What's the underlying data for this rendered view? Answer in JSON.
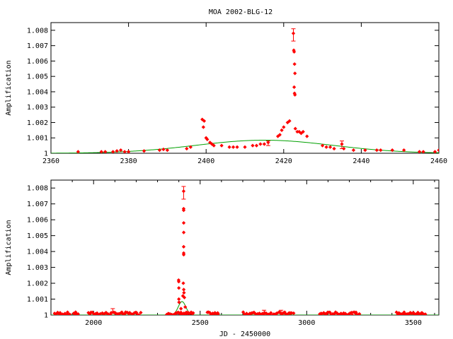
{
  "title": "MOA 2002-BLG-12",
  "colors": {
    "data": "#ff0000",
    "model": "#00a000",
    "axis": "#000000"
  },
  "chart_data": [
    {
      "type": "scatter",
      "title": "MOA 2002-BLG-12",
      "xlabel": "",
      "ylabel": "Amplification",
      "xlim": [
        2360,
        2460
      ],
      "ylim": [
        1.0,
        1.0085
      ],
      "xticks": [
        "2360",
        "2380",
        "2400",
        "2420",
        "2440",
        "2460"
      ],
      "xtick_values": [
        2360,
        2380,
        2400,
        2420,
        2440,
        2460
      ],
      "yticks": [
        "1",
        "1.001",
        "1.002",
        "1.003",
        "1.004",
        "1.005",
        "1.006",
        "1.007",
        "1.008"
      ],
      "ytick_values": [
        1.0,
        1.001,
        1.002,
        1.003,
        1.004,
        1.005,
        1.006,
        1.007,
        1.008
      ],
      "series": [
        {
          "kind": "points",
          "points": [
            [
              2367,
              1.0001
            ],
            [
              2373,
              1.0001
            ],
            [
              2374,
              1.0001
            ],
            [
              2376,
              1.0001
            ],
            [
              2377,
              1.00015
            ],
            [
              2378,
              1.0002
            ],
            [
              2379,
              1.0001
            ],
            [
              2380,
              1.0001
            ],
            [
              2384,
              1.00015
            ],
            [
              2388,
              1.0002
            ],
            [
              2389,
              1.00025
            ],
            [
              2390,
              1.0002
            ],
            [
              2395,
              1.0003
            ],
            [
              2396,
              1.0004
            ],
            [
              2399,
              1.0022
            ],
            [
              2399.5,
              1.0021
            ],
            [
              2399.3,
              1.0017
            ],
            [
              2400,
              1.001
            ],
            [
              2400.3,
              1.0009
            ],
            [
              2401,
              1.0007
            ],
            [
              2401.5,
              1.0006
            ],
            [
              2402,
              1.0005
            ],
            [
              2404,
              1.0005
            ],
            [
              2406,
              1.0004
            ],
            [
              2407,
              1.0004
            ],
            [
              2408,
              1.0004
            ],
            [
              2410,
              1.0004
            ],
            [
              2412,
              1.0005
            ],
            [
              2413,
              1.0005
            ],
            [
              2414,
              1.0006
            ],
            [
              2415,
              1.0006
            ],
            [
              2416,
              1.0007
            ],
            [
              2418.5,
              1.0011
            ],
            [
              2419,
              1.0012
            ],
            [
              2419.5,
              1.0015
            ],
            [
              2420,
              1.0017
            ],
            [
              2421,
              1.002
            ],
            [
              2421.5,
              1.0021
            ],
            [
              2422.5,
              1.0078
            ],
            [
              2422.6,
              1.0067
            ],
            [
              2422.7,
              1.0066
            ],
            [
              2422.8,
              1.0058
            ],
            [
              2422.9,
              1.0052
            ],
            [
              2422.7,
              1.0043
            ],
            [
              2422.8,
              1.0039
            ],
            [
              2422.9,
              1.0038
            ],
            [
              2423,
              1.0016
            ],
            [
              2423.5,
              1.0014
            ],
            [
              2424,
              1.0014
            ],
            [
              2424.5,
              1.0013
            ],
            [
              2425,
              1.0014
            ],
            [
              2426,
              1.0011
            ],
            [
              2430,
              1.0005
            ],
            [
              2431,
              1.0004
            ],
            [
              2432,
              1.0004
            ],
            [
              2433,
              1.0003
            ],
            [
              2435,
              1.0006
            ],
            [
              2435.5,
              1.0003
            ],
            [
              2438,
              1.0002
            ],
            [
              2441,
              1.0002
            ],
            [
              2444,
              1.0002
            ],
            [
              2445,
              1.0002
            ],
            [
              2448,
              1.0002
            ],
            [
              2451,
              1.0002
            ],
            [
              2455,
              1.0001
            ],
            [
              2456,
              1.0001
            ],
            [
              2459,
              1.0001
            ],
            [
              2460,
              1.0002
            ]
          ],
          "error_bars": [
            [
              2422.5,
              1.0073,
              1.0081
            ],
            [
              2435,
              1.0003,
              1.0008
            ],
            [
              2416,
              1.0005,
              1.0008
            ]
          ]
        },
        {
          "kind": "model",
          "description_params": {
            "amplitude": 0.00085,
            "center": 2415,
            "width": 25,
            "baseline": 1.0
          }
        }
      ]
    },
    {
      "type": "scatter",
      "title": "",
      "xlabel": "JD - 2450000",
      "ylabel": "Amplification",
      "xlim": [
        1800,
        3620
      ],
      "ylim": [
        1.0,
        1.0085
      ],
      "xticks": [
        "2000",
        "2500",
        "3000",
        "3500"
      ],
      "xtick_values": [
        2000,
        2500,
        3000,
        3500
      ],
      "yticks": [
        "1",
        "1.001",
        "1.002",
        "1.003",
        "1.004",
        "1.005",
        "1.006",
        "1.007",
        "1.008"
      ],
      "ytick_values": [
        1.0,
        1.001,
        1.002,
        1.003,
        1.004,
        1.005,
        1.006,
        1.007,
        1.008
      ],
      "series": [
        {
          "kind": "points",
          "clusters": [
            {
              "from": 1815,
              "to": 1890,
              "n": 14
            },
            {
              "from": 1905,
              "to": 1930,
              "n": 5
            },
            {
              "from": 1975,
              "to": 2225,
              "n": 40
            },
            {
              "from": 2340,
              "to": 2470,
              "n": 28
            },
            {
              "from": 2530,
              "to": 2590,
              "n": 10
            },
            {
              "from": 2700,
              "to": 2940,
              "n": 42
            },
            {
              "from": 3060,
              "to": 3250,
              "n": 36
            },
            {
              "from": 3420,
              "to": 3560,
              "n": 28
            }
          ],
          "points": [
            [
              2399,
              1.0022
            ],
            [
              2399.5,
              1.0021
            ],
            [
              2400,
              1.0017
            ],
            [
              2400,
              1.001
            ],
            [
              2401,
              1.0008
            ],
            [
              2422.5,
              1.0078
            ],
            [
              2422.6,
              1.0067
            ],
            [
              2422.7,
              1.0066
            ],
            [
              2422.8,
              1.0058
            ],
            [
              2422.9,
              1.0052
            ],
            [
              2422.7,
              1.0043
            ],
            [
              2422.8,
              1.0039
            ],
            [
              2422.9,
              1.0038
            ],
            [
              2421,
              1.002
            ],
            [
              2423,
              1.0016
            ],
            [
              2424,
              1.0014
            ],
            [
              2426,
              1.0011
            ],
            [
              2419,
              1.0012
            ],
            [
              2430,
              1.0005
            ],
            [
              2410,
              1.0004
            ]
          ],
          "error_bars": [
            [
              2422.5,
              1.0073,
              1.0081
            ],
            [
              2090,
              1.0001,
              1.0004
            ],
            [
              2800,
              1.0001,
              1.0003
            ],
            [
              2880,
              1.0001,
              1.0003
            ]
          ]
        },
        {
          "kind": "model",
          "description_params": {
            "amplitude": 0.00085,
            "center": 2415,
            "width": 25,
            "baseline": 1.0
          }
        }
      ]
    }
  ]
}
